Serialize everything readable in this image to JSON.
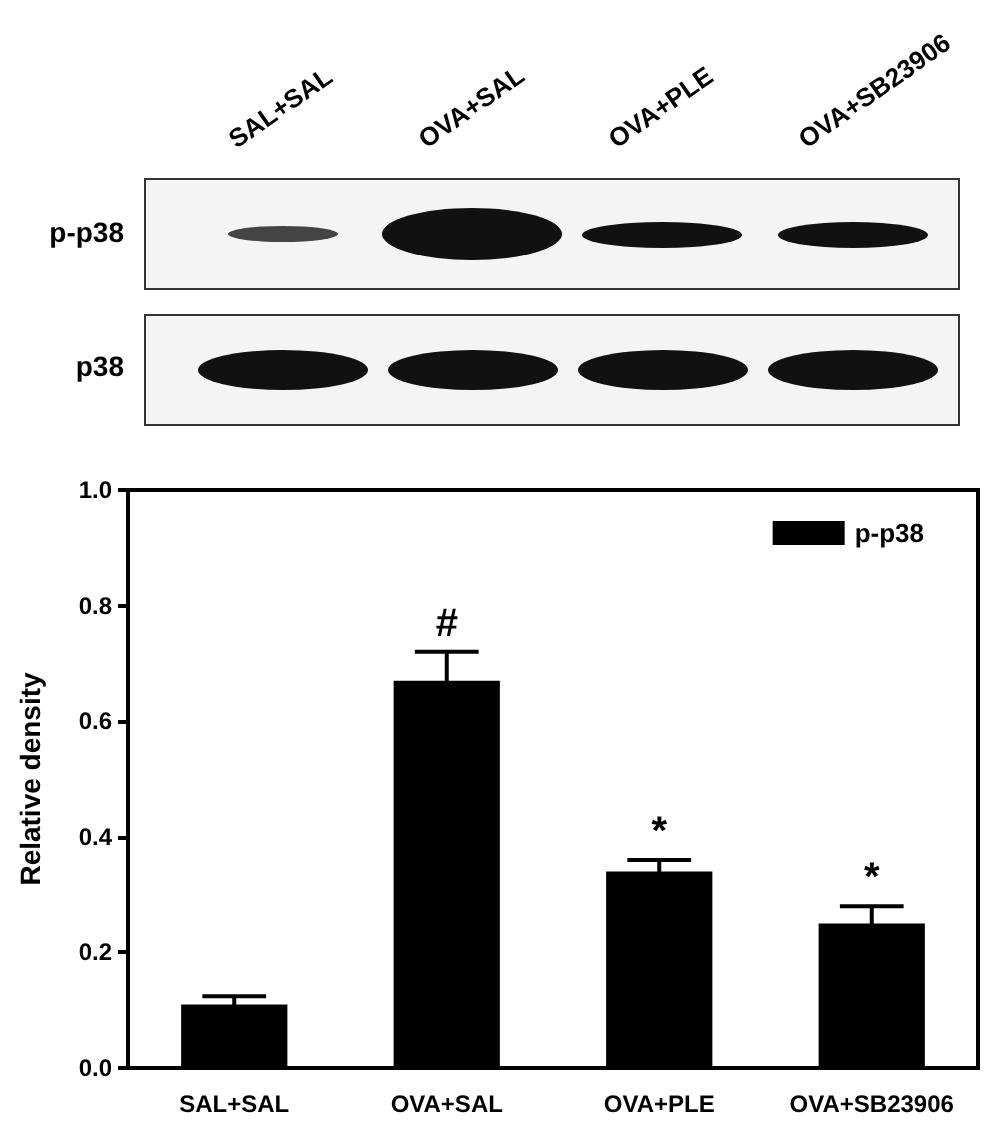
{
  "chart_data": {
    "type": "bar",
    "ylabel": "Relative density",
    "categories": [
      "SAL+SAL",
      "OVA+SAL",
      "OVA+PLE",
      "OVA+SB23906"
    ],
    "series": [
      {
        "name": "p-p38",
        "color": "#000000",
        "values": [
          0.11,
          0.67,
          0.34,
          0.25
        ],
        "errors": [
          0.014,
          0.05,
          0.02,
          0.03
        ]
      }
    ],
    "ylim": [
      0,
      1
    ],
    "yticks": [
      {
        "value": 0,
        "label": "0.0"
      },
      {
        "value": 0.2,
        "label": "0.2"
      },
      {
        "value": 0.4,
        "label": "0.4"
      },
      {
        "value": 0.6,
        "label": "0.6"
      },
      {
        "value": 0.8,
        "label": "0.8"
      },
      {
        "value": 1,
        "label": "1.0"
      }
    ],
    "grid": false,
    "legend": "top right",
    "annotations": [
      "p-p38",
      "p38",
      {
        "text": "#",
        "x": "OVA+SAL",
        "y": 0.72
      },
      {
        "text": "*",
        "x": "OVA+PLE",
        "y": 0.36
      },
      {
        "text": "*",
        "x": "OVA+SB23906",
        "y": 0.28
      }
    ]
  }
}
